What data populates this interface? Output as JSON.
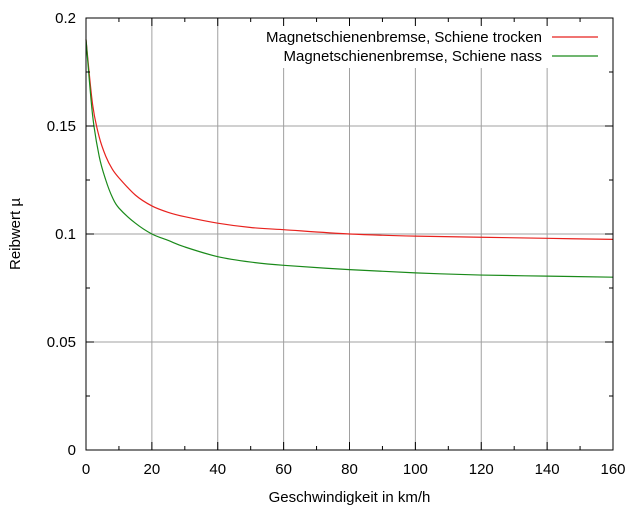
{
  "chart_data": {
    "type": "line",
    "xlabel": "Geschwindigkeit in km/h",
    "ylabel": "Reibwert µ",
    "xlim": [
      0,
      160
    ],
    "ylim": [
      0,
      0.2
    ],
    "xticks": [
      0,
      20,
      40,
      60,
      80,
      100,
      120,
      140,
      160
    ],
    "xtick_labels": [
      "0",
      "20",
      "40",
      "60",
      "80",
      "100",
      "120",
      "140",
      "160"
    ],
    "yticks": [
      0,
      0.05,
      0.1,
      0.15,
      0.2
    ],
    "ytick_labels": [
      "0",
      "0.05",
      "0.1",
      "0.15",
      "0.2"
    ],
    "grid": true,
    "legend_position": "top-right",
    "series": [
      {
        "name": "Magnetschienenbremse, Schiene trocken",
        "color": "#e8221e",
        "x": [
          0,
          2,
          4,
          6,
          8,
          10,
          15,
          20,
          25,
          30,
          40,
          50,
          60,
          80,
          100,
          120,
          140,
          160
        ],
        "y": [
          0.19,
          0.16,
          0.145,
          0.136,
          0.13,
          0.126,
          0.118,
          0.113,
          0.11,
          0.108,
          0.105,
          0.103,
          0.102,
          0.1,
          0.099,
          0.0985,
          0.098,
          0.0975
        ]
      },
      {
        "name": "Magnetschienenbremse, Schiene nass",
        "color": "#1a8a1a",
        "x": [
          0,
          2,
          4,
          6,
          8,
          10,
          15,
          20,
          25,
          30,
          40,
          50,
          60,
          80,
          100,
          120,
          140,
          160
        ],
        "y": [
          0.19,
          0.155,
          0.136,
          0.125,
          0.117,
          0.112,
          0.105,
          0.1,
          0.097,
          0.094,
          0.0895,
          0.087,
          0.0855,
          0.0835,
          0.082,
          0.081,
          0.0805,
          0.08
        ]
      }
    ]
  }
}
